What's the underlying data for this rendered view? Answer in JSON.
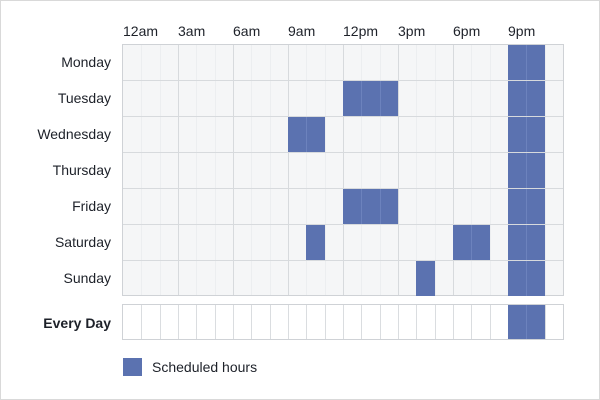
{
  "colors": {
    "scheduled": "#5b72b0",
    "grid_background": "#f5f6f7",
    "grid_line": "#d7dadd"
  },
  "hours": [
    "12am",
    "3am",
    "6am",
    "9am",
    "12pm",
    "3pm",
    "6pm",
    "9pm"
  ],
  "days": [
    "Monday",
    "Tuesday",
    "Wednesday",
    "Thursday",
    "Friday",
    "Saturday",
    "Sunday"
  ],
  "every_day_label": "Every Day",
  "legend": {
    "label": "Scheduled hours"
  },
  "schedule": [
    {
      "day": "Monday",
      "ranges": [
        [
          21,
          23
        ]
      ]
    },
    {
      "day": "Tuesday",
      "ranges": [
        [
          12,
          15
        ],
        [
          21,
          23
        ]
      ]
    },
    {
      "day": "Wednesday",
      "ranges": [
        [
          9,
          11
        ],
        [
          21,
          23
        ]
      ]
    },
    {
      "day": "Thursday",
      "ranges": [
        [
          21,
          23
        ]
      ]
    },
    {
      "day": "Friday",
      "ranges": [
        [
          12,
          15
        ],
        [
          21,
          23
        ]
      ]
    },
    {
      "day": "Saturday",
      "ranges": [
        [
          10,
          11
        ],
        [
          18,
          20
        ],
        [
          21,
          23
        ]
      ]
    },
    {
      "day": "Sunday",
      "ranges": [
        [
          16,
          17
        ],
        [
          21,
          23
        ]
      ]
    }
  ],
  "every_day_ranges": [
    [
      21,
      23
    ]
  ]
}
